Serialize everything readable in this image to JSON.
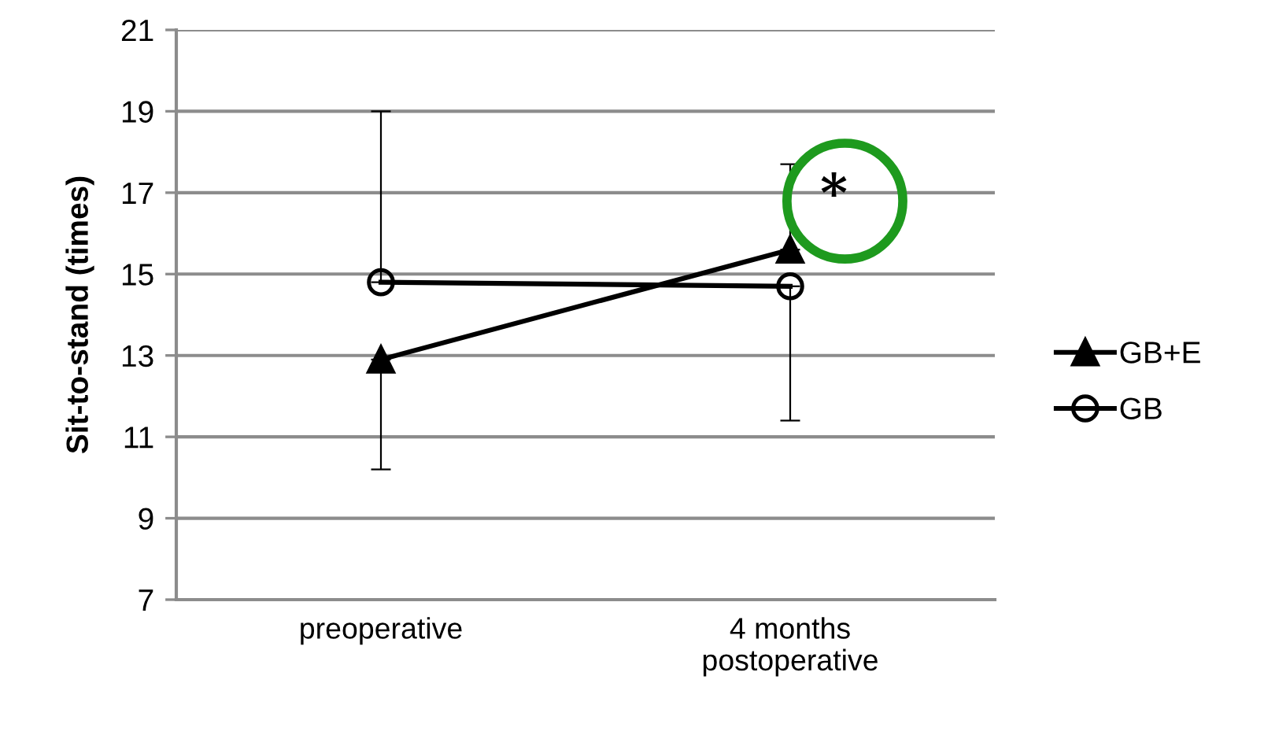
{
  "chart_data": {
    "type": "line",
    "ylabel": "Sit-to-stand (times)",
    "categories": [
      "preoperative",
      "4 months\npostoperative"
    ],
    "series": [
      {
        "name": "GB+E",
        "color": "#000000",
        "marker": "triangle",
        "values": [
          12.9,
          15.6
        ],
        "errors": [
          [
            10.2,
            12.9
          ],
          [
            15.6,
            17.7
          ]
        ]
      },
      {
        "name": "GB",
        "color": "#000000",
        "marker": "circle",
        "values": [
          14.8,
          14.7
        ],
        "errors": [
          [
            14.8,
            19.0
          ],
          [
            11.4,
            14.7
          ]
        ]
      }
    ],
    "ylim": [
      7,
      21
    ],
    "yticks": [
      7,
      9,
      11,
      13,
      15,
      17,
      19,
      21
    ],
    "grid": "y",
    "legend": "right",
    "line_style": "solid",
    "annotations": [
      {
        "text": "*",
        "x": "4 months\npostoperative",
        "y": 16.9
      }
    ]
  }
}
